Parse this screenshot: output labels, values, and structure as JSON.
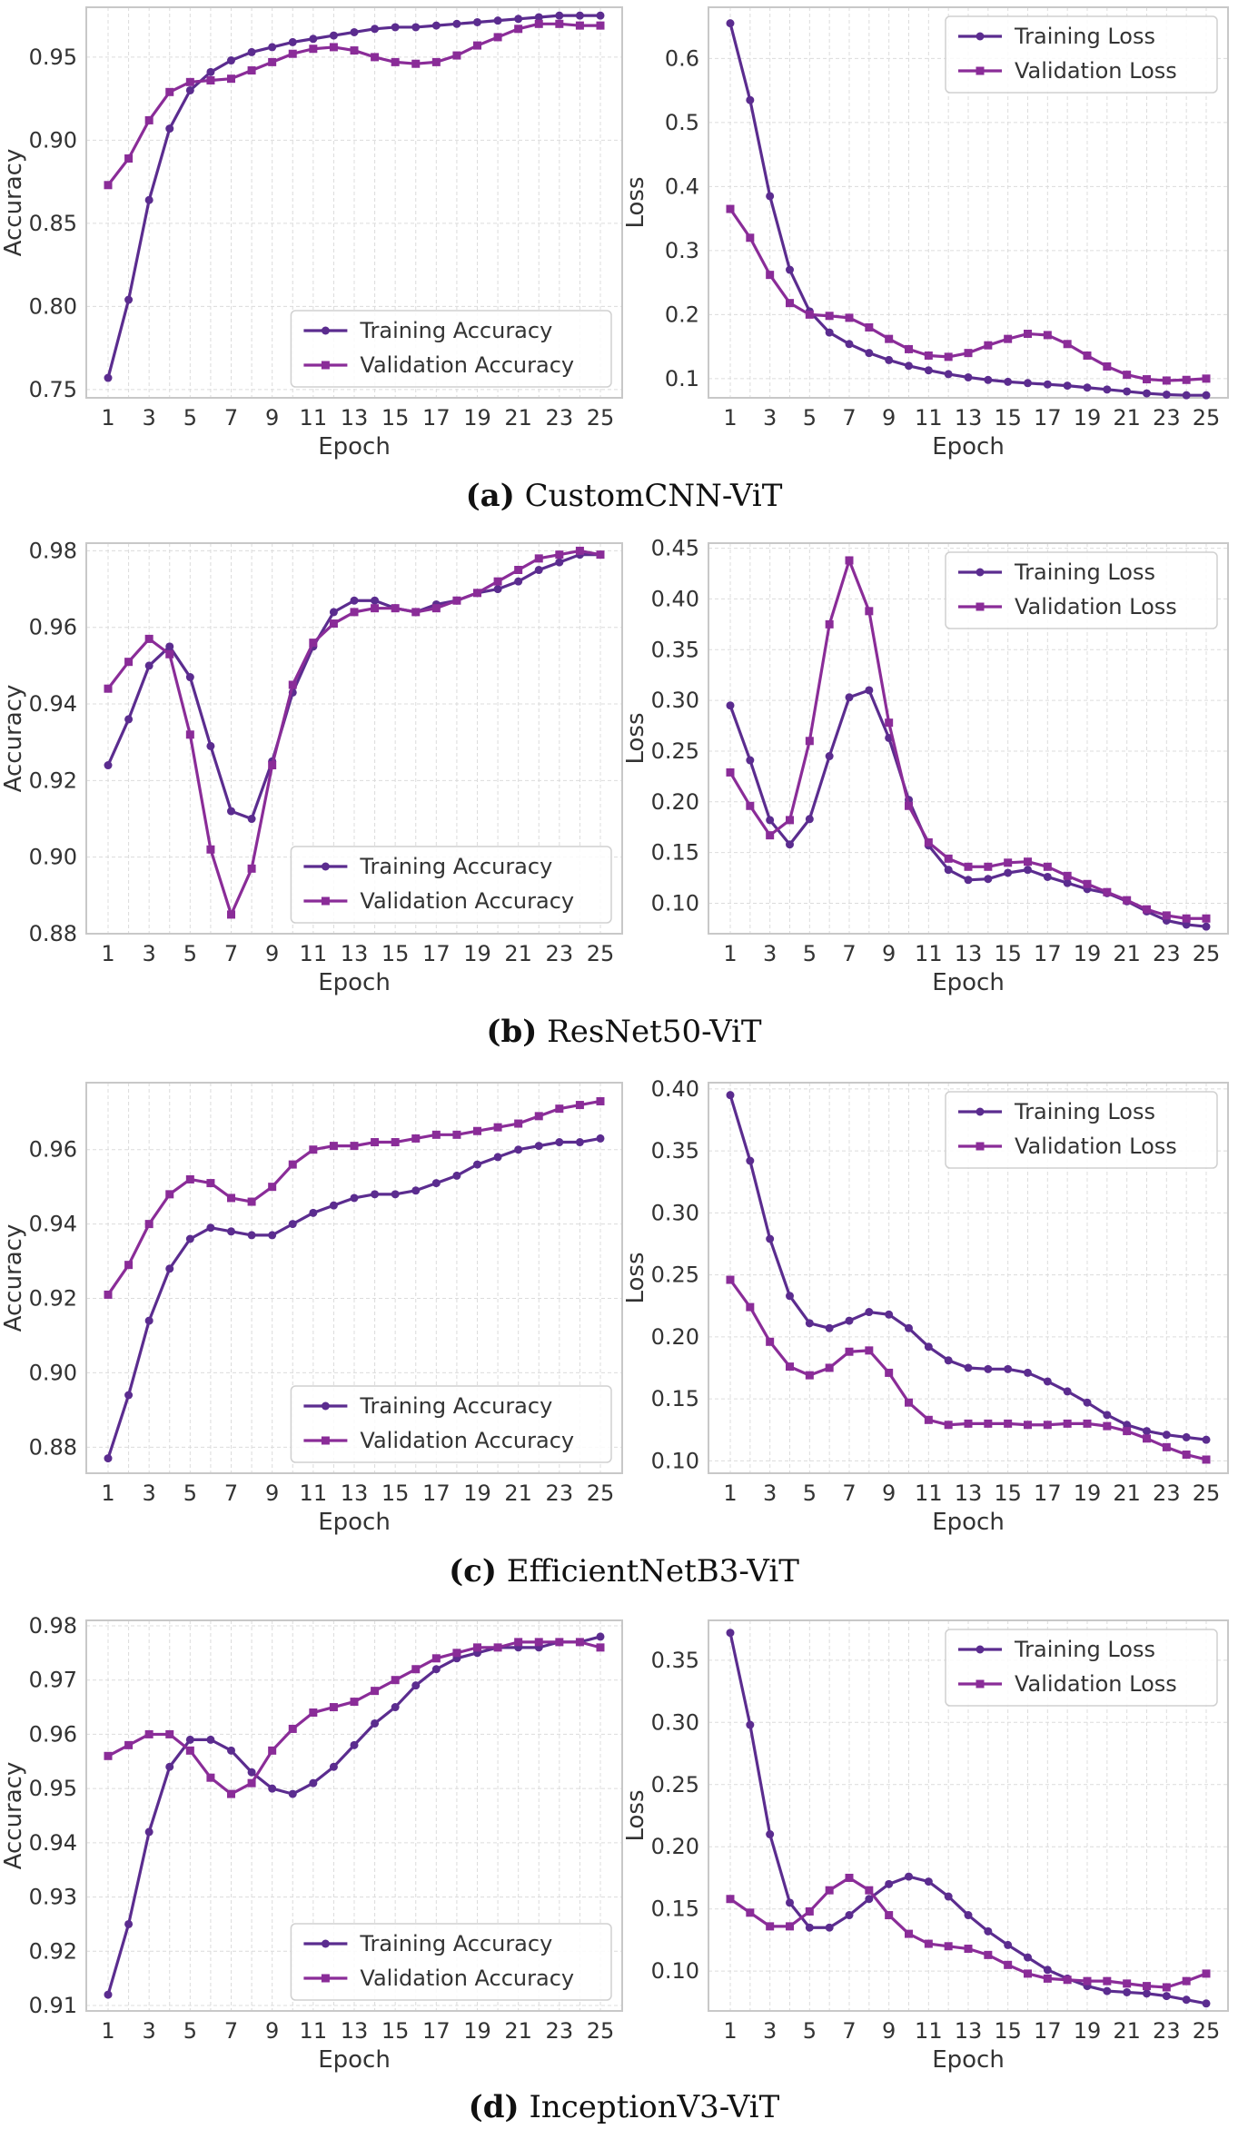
{
  "colors": {
    "training": "#5b2c8f",
    "validation": "#8a2c98",
    "frame": "#c8c8c8",
    "grid": "#dcdcdc",
    "text": "#333333"
  },
  "panels": [
    {
      "tag": "(a)",
      "name": "CustomCNN-ViT",
      "accuracy": {
        "type": "line",
        "ylabel": "Accuracy",
        "xlabel": "Epoch",
        "ylim": [
          0.745,
          0.98
        ],
        "yticks": [
          "0.75",
          "0.80",
          "0.85",
          "0.90",
          "0.95"
        ],
        "xticks": [
          "1",
          "3",
          "5",
          "7",
          "9",
          "11",
          "13",
          "15",
          "17",
          "19",
          "21",
          "23",
          "25"
        ],
        "legend_position": "bottom-right",
        "series": [
          {
            "name": "Training Accuracy",
            "marker": "circle",
            "values": [
              0.757,
              0.804,
              0.864,
              0.907,
              0.93,
              0.941,
              0.948,
              0.953,
              0.956,
              0.959,
              0.961,
              0.963,
              0.965,
              0.967,
              0.968,
              0.968,
              0.969,
              0.97,
              0.971,
              0.972,
              0.973,
              0.974,
              0.975,
              0.975,
              0.975
            ]
          },
          {
            "name": "Validation Accuracy",
            "marker": "square",
            "values": [
              0.873,
              0.889,
              0.912,
              0.929,
              0.935,
              0.936,
              0.937,
              0.942,
              0.947,
              0.952,
              0.955,
              0.956,
              0.954,
              0.95,
              0.947,
              0.946,
              0.947,
              0.951,
              0.957,
              0.962,
              0.967,
              0.97,
              0.97,
              0.969,
              0.969
            ]
          }
        ]
      },
      "loss": {
        "type": "line",
        "ylabel": "Loss",
        "xlabel": "Epoch",
        "ylim": [
          0.07,
          0.68
        ],
        "yticks": [
          "0.1",
          "0.2",
          "0.3",
          "0.4",
          "0.5",
          "0.6"
        ],
        "xticks": [
          "1",
          "3",
          "5",
          "7",
          "9",
          "11",
          "13",
          "15",
          "17",
          "19",
          "21",
          "23",
          "25"
        ],
        "legend_position": "top-right",
        "series": [
          {
            "name": "Training Loss",
            "marker": "circle",
            "values": [
              0.655,
              0.535,
              0.385,
              0.27,
              0.205,
              0.172,
              0.154,
              0.14,
              0.129,
              0.12,
              0.113,
              0.107,
              0.102,
              0.098,
              0.095,
              0.093,
              0.091,
              0.089,
              0.086,
              0.083,
              0.08,
              0.077,
              0.075,
              0.074,
              0.074
            ]
          },
          {
            "name": "Validation Loss",
            "marker": "square",
            "values": [
              0.365,
              0.32,
              0.262,
              0.218,
              0.2,
              0.198,
              0.195,
              0.18,
              0.162,
              0.146,
              0.136,
              0.134,
              0.14,
              0.152,
              0.162,
              0.17,
              0.168,
              0.154,
              0.136,
              0.119,
              0.106,
              0.099,
              0.097,
              0.098,
              0.1
            ]
          }
        ]
      }
    },
    {
      "tag": "(b)",
      "name": "ResNet50-ViT",
      "accuracy": {
        "type": "line",
        "ylabel": "Accuracy",
        "xlabel": "Epoch",
        "ylim": [
          0.88,
          0.982
        ],
        "yticks": [
          "0.88",
          "0.90",
          "0.92",
          "0.94",
          "0.96",
          "0.98"
        ],
        "xticks": [
          "1",
          "3",
          "5",
          "7",
          "9",
          "11",
          "13",
          "15",
          "17",
          "19",
          "21",
          "23",
          "25"
        ],
        "legend_position": "bottom-right",
        "series": [
          {
            "name": "Training Accuracy",
            "marker": "circle",
            "values": [
              0.924,
              0.936,
              0.95,
              0.955,
              0.947,
              0.929,
              0.912,
              0.91,
              0.925,
              0.943,
              0.955,
              0.964,
              0.967,
              0.967,
              0.965,
              0.964,
              0.966,
              0.967,
              0.969,
              0.97,
              0.972,
              0.975,
              0.977,
              0.979,
              0.979
            ]
          },
          {
            "name": "Validation Accuracy",
            "marker": "square",
            "values": [
              0.944,
              0.951,
              0.957,
              0.953,
              0.932,
              0.902,
              0.885,
              0.897,
              0.924,
              0.945,
              0.956,
              0.961,
              0.964,
              0.965,
              0.965,
              0.964,
              0.965,
              0.967,
              0.969,
              0.972,
              0.975,
              0.978,
              0.979,
              0.98,
              0.979
            ]
          }
        ]
      },
      "loss": {
        "type": "line",
        "ylabel": "Loss",
        "xlabel": "Epoch",
        "ylim": [
          0.07,
          0.455
        ],
        "yticks": [
          "0.10",
          "0.15",
          "0.20",
          "0.25",
          "0.30",
          "0.35",
          "0.40",
          "0.45"
        ],
        "xticks": [
          "1",
          "3",
          "5",
          "7",
          "9",
          "11",
          "13",
          "15",
          "17",
          "19",
          "21",
          "23",
          "25"
        ],
        "legend_position": "top-right",
        "series": [
          {
            "name": "Training Loss",
            "marker": "circle",
            "values": [
              0.295,
              0.241,
              0.182,
              0.158,
              0.183,
              0.245,
              0.303,
              0.31,
              0.263,
              0.202,
              0.157,
              0.133,
              0.123,
              0.124,
              0.13,
              0.133,
              0.126,
              0.12,
              0.114,
              0.11,
              0.102,
              0.092,
              0.083,
              0.079,
              0.077
            ]
          },
          {
            "name": "Validation Loss",
            "marker": "square",
            "values": [
              0.229,
              0.196,
              0.167,
              0.182,
              0.26,
              0.375,
              0.438,
              0.388,
              0.278,
              0.196,
              0.16,
              0.144,
              0.136,
              0.136,
              0.14,
              0.141,
              0.136,
              0.127,
              0.119,
              0.111,
              0.103,
              0.094,
              0.088,
              0.085,
              0.085
            ]
          }
        ]
      }
    },
    {
      "tag": "(c)",
      "name": "EfficientNetB3-ViT",
      "accuracy": {
        "type": "line",
        "ylabel": "Accuracy",
        "xlabel": "Epoch",
        "ylim": [
          0.873,
          0.978
        ],
        "yticks": [
          "0.88",
          "0.90",
          "0.92",
          "0.94",
          "0.96"
        ],
        "xticks": [
          "1",
          "3",
          "5",
          "7",
          "9",
          "11",
          "13",
          "15",
          "17",
          "19",
          "21",
          "23",
          "25"
        ],
        "legend_position": "bottom-right",
        "series": [
          {
            "name": "Training Accuracy",
            "marker": "circle",
            "values": [
              0.877,
              0.894,
              0.914,
              0.928,
              0.936,
              0.939,
              0.938,
              0.937,
              0.937,
              0.94,
              0.943,
              0.945,
              0.947,
              0.948,
              0.948,
              0.949,
              0.951,
              0.953,
              0.956,
              0.958,
              0.96,
              0.961,
              0.962,
              0.962,
              0.963
            ]
          },
          {
            "name": "Validation Accuracy",
            "marker": "square",
            "values": [
              0.921,
              0.929,
              0.94,
              0.948,
              0.952,
              0.951,
              0.947,
              0.946,
              0.95,
              0.956,
              0.96,
              0.961,
              0.961,
              0.962,
              0.962,
              0.963,
              0.964,
              0.964,
              0.965,
              0.966,
              0.967,
              0.969,
              0.971,
              0.972,
              0.973
            ]
          }
        ]
      },
      "loss": {
        "type": "line",
        "ylabel": "Loss",
        "xlabel": "Epoch",
        "ylim": [
          0.09,
          0.405
        ],
        "yticks": [
          "0.10",
          "0.15",
          "0.20",
          "0.25",
          "0.30",
          "0.35",
          "0.40"
        ],
        "xticks": [
          "1",
          "3",
          "5",
          "7",
          "9",
          "11",
          "13",
          "15",
          "17",
          "19",
          "21",
          "23",
          "25"
        ],
        "legend_position": "top-right",
        "series": [
          {
            "name": "Training Loss",
            "marker": "circle",
            "values": [
              0.395,
              0.342,
              0.279,
              0.233,
              0.211,
              0.207,
              0.213,
              0.22,
              0.218,
              0.207,
              0.192,
              0.181,
              0.175,
              0.174,
              0.174,
              0.171,
              0.164,
              0.156,
              0.147,
              0.137,
              0.129,
              0.124,
              0.121,
              0.119,
              0.117
            ]
          },
          {
            "name": "Validation Loss",
            "marker": "square",
            "values": [
              0.246,
              0.224,
              0.196,
              0.176,
              0.169,
              0.175,
              0.188,
              0.189,
              0.171,
              0.147,
              0.133,
              0.129,
              0.13,
              0.13,
              0.13,
              0.129,
              0.129,
              0.13,
              0.13,
              0.128,
              0.124,
              0.118,
              0.111,
              0.105,
              0.101
            ]
          }
        ]
      }
    },
    {
      "tag": "(d)",
      "name": "InceptionV3-ViT",
      "accuracy": {
        "type": "line",
        "ylabel": "Accuracy",
        "xlabel": "Epoch",
        "ylim": [
          0.909,
          0.981
        ],
        "yticks": [
          "0.91",
          "0.92",
          "0.93",
          "0.94",
          "0.95",
          "0.96",
          "0.97",
          "0.98"
        ],
        "xticks": [
          "1",
          "3",
          "5",
          "7",
          "9",
          "11",
          "13",
          "15",
          "17",
          "19",
          "21",
          "23",
          "25"
        ],
        "legend_position": "bottom-right",
        "series": [
          {
            "name": "Training Accuracy",
            "marker": "circle",
            "values": [
              0.912,
              0.925,
              0.942,
              0.954,
              0.959,
              0.959,
              0.957,
              0.953,
              0.95,
              0.949,
              0.951,
              0.954,
              0.958,
              0.962,
              0.965,
              0.969,
              0.972,
              0.974,
              0.975,
              0.976,
              0.976,
              0.976,
              0.977,
              0.977,
              0.978
            ]
          },
          {
            "name": "Validation Accuracy",
            "marker": "square",
            "values": [
              0.956,
              0.958,
              0.96,
              0.96,
              0.957,
              0.952,
              0.949,
              0.951,
              0.957,
              0.961,
              0.964,
              0.965,
              0.966,
              0.968,
              0.97,
              0.972,
              0.974,
              0.975,
              0.976,
              0.976,
              0.977,
              0.977,
              0.977,
              0.977,
              0.976
            ]
          }
        ]
      },
      "loss": {
        "type": "line",
        "ylabel": "Loss",
        "xlabel": "Epoch",
        "ylim": [
          0.068,
          0.382
        ],
        "yticks": [
          "0.10",
          "0.15",
          "0.20",
          "0.25",
          "0.30",
          "0.35"
        ],
        "xticks": [
          "1",
          "3",
          "5",
          "7",
          "9",
          "11",
          "13",
          "15",
          "17",
          "19",
          "21",
          "23",
          "25"
        ],
        "legend_position": "top-right",
        "series": [
          {
            "name": "Training Loss",
            "marker": "circle",
            "values": [
              0.372,
              0.298,
              0.21,
              0.155,
              0.135,
              0.135,
              0.145,
              0.158,
              0.17,
              0.176,
              0.172,
              0.16,
              0.145,
              0.132,
              0.121,
              0.111,
              0.101,
              0.094,
              0.088,
              0.084,
              0.083,
              0.082,
              0.08,
              0.077,
              0.074
            ]
          },
          {
            "name": "Validation Loss",
            "marker": "square",
            "values": [
              0.158,
              0.147,
              0.136,
              0.136,
              0.148,
              0.165,
              0.175,
              0.165,
              0.145,
              0.13,
              0.122,
              0.12,
              0.118,
              0.113,
              0.105,
              0.098,
              0.094,
              0.093,
              0.092,
              0.092,
              0.09,
              0.088,
              0.087,
              0.092,
              0.098
            ]
          }
        ]
      }
    }
  ]
}
